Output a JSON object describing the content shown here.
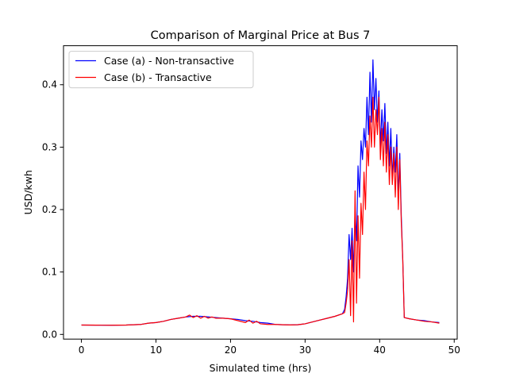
{
  "chart_data": {
    "type": "line",
    "title": "Comparison of Marginal Price at Bus 7",
    "xlabel": "Simulated time (hrs)",
    "ylabel": "USD/kwh",
    "xlim": [
      -2.4,
      50.4
    ],
    "ylim": [
      -0.0075,
      0.4625
    ],
    "xticks": [
      0,
      10,
      20,
      30,
      40,
      50
    ],
    "xtick_labels": [
      "0",
      "10",
      "20",
      "30",
      "40",
      "50"
    ],
    "yticks": [
      0.0,
      0.1,
      0.2,
      0.3,
      0.4
    ],
    "ytick_labels": [
      "0.0",
      "0.1",
      "0.2",
      "0.3",
      "0.4"
    ],
    "grid": false,
    "legend_position": "top-left",
    "series": [
      {
        "name": "Case (a) - Non-transactive",
        "color": "#0000ff",
        "x": [
          0,
          2,
          4,
          6,
          8,
          9,
          10,
          11,
          12,
          13,
          14,
          15,
          16,
          17,
          18,
          19,
          20,
          21,
          22,
          23,
          24,
          25,
          26,
          27,
          28,
          29,
          30,
          31,
          32,
          33,
          34,
          35,
          35.3,
          35.5,
          35.7,
          35.9,
          36.1,
          36.3,
          36.5,
          36.7,
          36.9,
          37.1,
          37.3,
          37.5,
          37.7,
          37.9,
          38.1,
          38.3,
          38.5,
          38.7,
          38.9,
          39.1,
          39.3,
          39.5,
          39.7,
          39.9,
          40.1,
          40.3,
          40.5,
          40.7,
          40.9,
          41.1,
          41.3,
          41.5,
          41.7,
          41.9,
          42.1,
          42.3,
          42.5,
          42.7,
          42.9,
          43.1,
          43.3,
          44,
          45,
          46,
          47,
          48
        ],
        "y": [
          0.015,
          0.0148,
          0.0147,
          0.015,
          0.016,
          0.018,
          0.019,
          0.021,
          0.024,
          0.026,
          0.028,
          0.029,
          0.029,
          0.028,
          0.027,
          0.026,
          0.025,
          0.024,
          0.022,
          0.021,
          0.019,
          0.018,
          0.016,
          0.0155,
          0.0152,
          0.0155,
          0.017,
          0.02,
          0.023,
          0.026,
          0.029,
          0.033,
          0.04,
          0.06,
          0.09,
          0.16,
          0.12,
          0.17,
          0.1,
          0.2,
          0.15,
          0.27,
          0.22,
          0.31,
          0.28,
          0.33,
          0.3,
          0.38,
          0.32,
          0.42,
          0.34,
          0.44,
          0.36,
          0.41,
          0.34,
          0.39,
          0.3,
          0.36,
          0.31,
          0.37,
          0.29,
          0.34,
          0.27,
          0.33,
          0.25,
          0.3,
          0.26,
          0.32,
          0.22,
          0.29,
          0.19,
          0.12,
          0.027,
          0.025,
          0.023,
          0.022,
          0.02,
          0.019
        ]
      },
      {
        "name": "Case (b) - Transactive",
        "color": "#ff0000",
        "x": [
          0,
          2,
          4,
          6,
          8,
          9,
          10,
          11,
          12,
          13,
          14,
          14.5,
          15,
          15.5,
          16,
          16.5,
          17,
          17.5,
          18,
          19,
          20,
          21,
          22,
          22.5,
          23,
          23.5,
          24,
          25,
          26,
          27,
          28,
          29,
          30,
          31,
          32,
          33,
          34,
          35,
          35.3,
          35.5,
          35.7,
          35.9,
          36.1,
          36.3,
          36.5,
          36.7,
          36.9,
          37.1,
          37.3,
          37.5,
          37.7,
          37.9,
          38.1,
          38.3,
          38.5,
          38.7,
          38.9,
          39.1,
          39.3,
          39.5,
          39.7,
          39.9,
          40.1,
          40.3,
          40.5,
          40.7,
          40.9,
          41.1,
          41.3,
          41.5,
          41.7,
          41.9,
          42.1,
          42.3,
          42.5,
          42.7,
          42.9,
          43.1,
          43.3,
          44,
          45,
          46,
          47,
          48
        ],
        "y": [
          0.015,
          0.0148,
          0.0147,
          0.015,
          0.016,
          0.018,
          0.019,
          0.021,
          0.024,
          0.026,
          0.028,
          0.031,
          0.027,
          0.03,
          0.026,
          0.029,
          0.026,
          0.028,
          0.026,
          0.026,
          0.025,
          0.022,
          0.019,
          0.023,
          0.018,
          0.021,
          0.017,
          0.016,
          0.016,
          0.0155,
          0.0152,
          0.0155,
          0.017,
          0.02,
          0.023,
          0.026,
          0.029,
          0.033,
          0.035,
          0.05,
          0.07,
          0.12,
          0.03,
          0.15,
          0.02,
          0.23,
          0.05,
          0.19,
          0.09,
          0.21,
          0.16,
          0.26,
          0.2,
          0.31,
          0.27,
          0.35,
          0.3,
          0.38,
          0.3,
          0.36,
          0.32,
          0.38,
          0.28,
          0.33,
          0.27,
          0.34,
          0.26,
          0.32,
          0.24,
          0.3,
          0.24,
          0.29,
          0.22,
          0.3,
          0.2,
          0.28,
          0.18,
          0.12,
          0.027,
          0.025,
          0.023,
          0.021,
          0.02,
          0.018
        ]
      }
    ]
  }
}
